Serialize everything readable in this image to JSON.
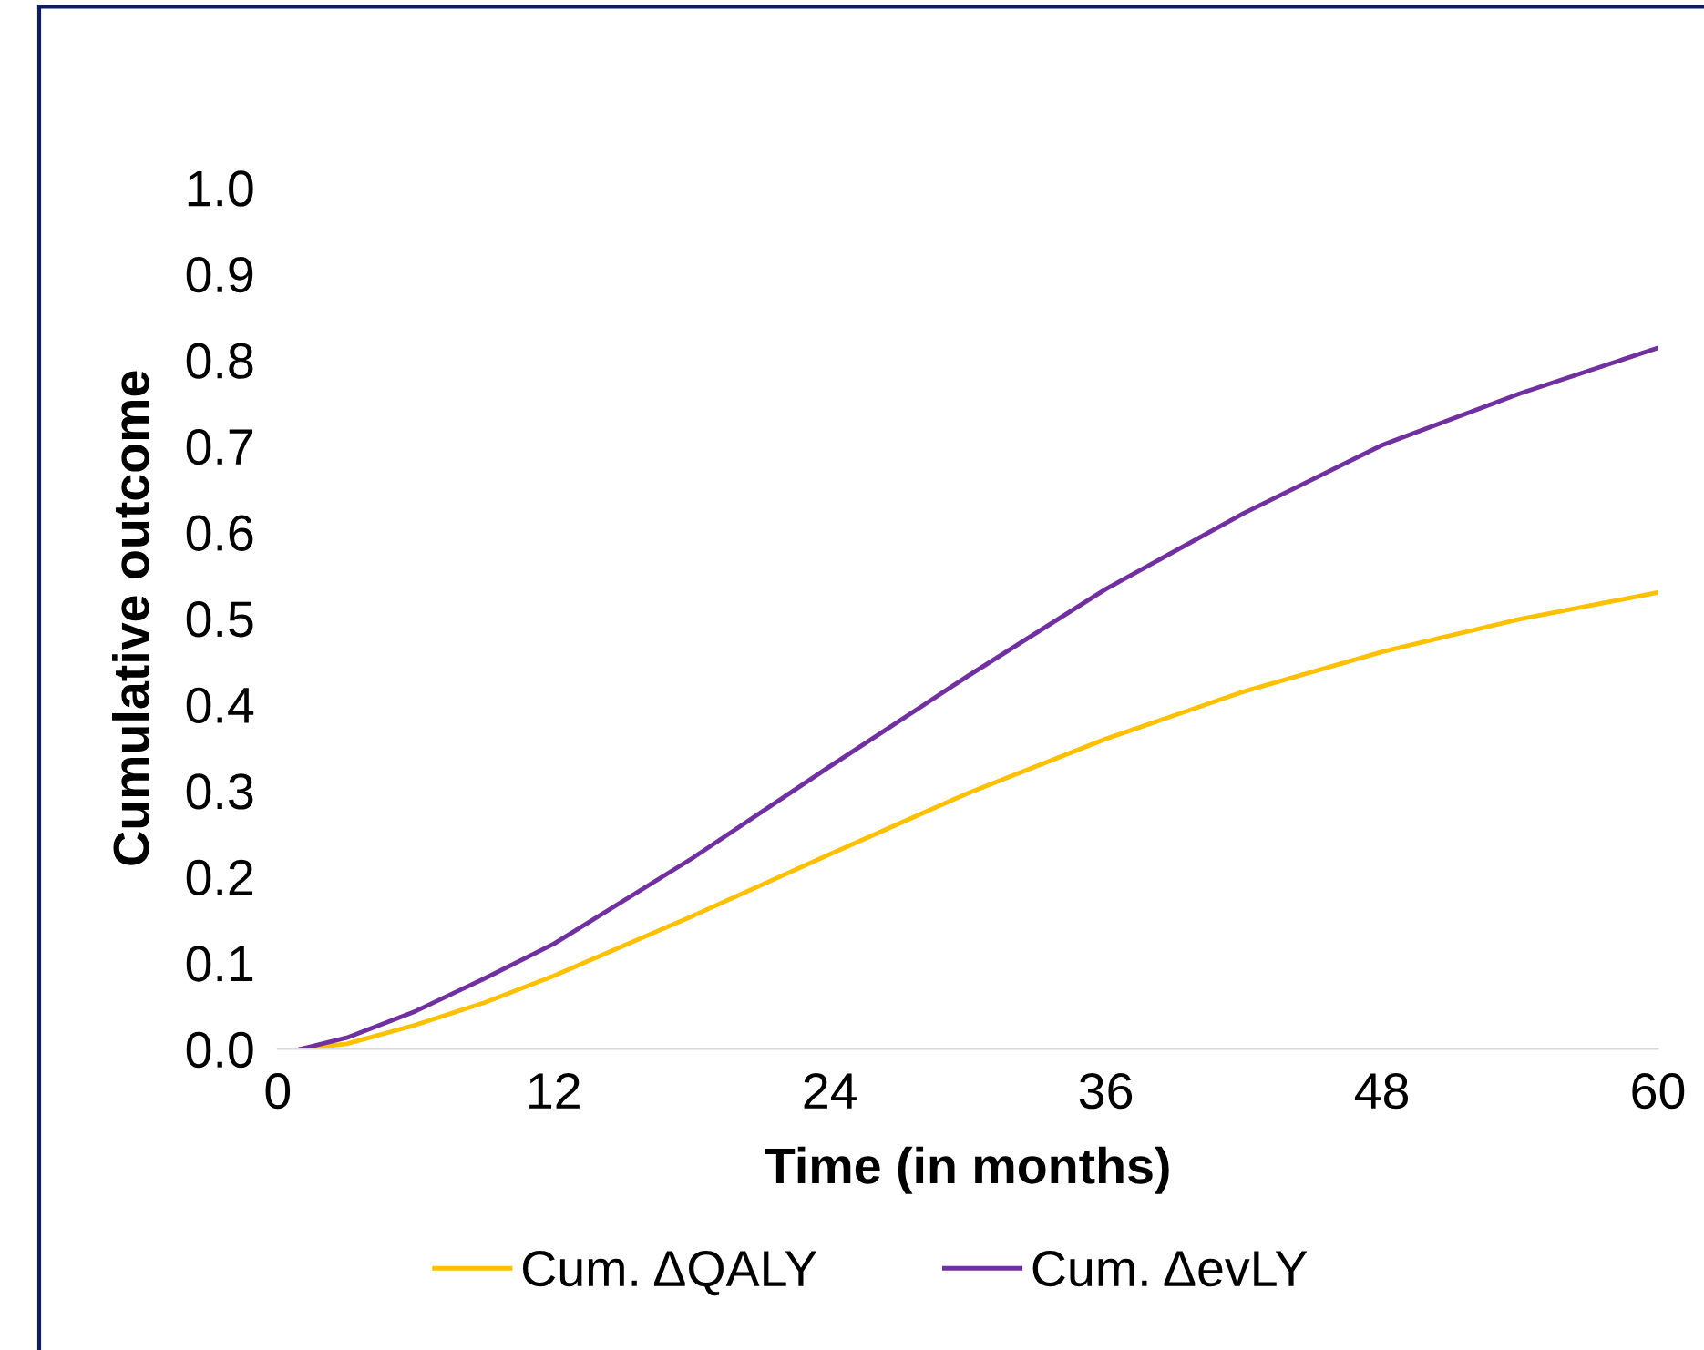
{
  "chart_data": {
    "type": "line",
    "xlabel": "Time (in months)",
    "ylabel": "Cumulative outcome",
    "xlim": [
      0,
      60
    ],
    "xticks": [
      0,
      12,
      24,
      36,
      48,
      60
    ],
    "ylim": [
      0,
      1.0
    ],
    "yticks": [
      {
        "value": 0,
        "label": "0.0"
      },
      {
        "value": 0.1,
        "label": "0.1"
      },
      {
        "value": 0.2,
        "label": "0.2"
      },
      {
        "value": 0.3,
        "label": "0.3"
      },
      {
        "value": 0.4,
        "label": "0.4"
      },
      {
        "value": 0.5,
        "label": "0.5"
      },
      {
        "value": 0.6,
        "label": "0.6"
      },
      {
        "value": 0.7,
        "label": "0.7"
      },
      {
        "value": 0.8,
        "label": "0.8"
      },
      {
        "value": 0.9,
        "label": "0.9"
      },
      {
        "value": 1.0,
        "label": "1.0"
      }
    ],
    "grid": false,
    "legend": "bottom",
    "marker": "none",
    "line_style": "solid",
    "series": [
      {
        "name": "Cum. ΔQALY",
        "color": "#ffc000",
        "x": [
          1,
          3,
          6,
          9,
          12,
          18,
          24,
          30,
          36,
          42,
          48,
          54,
          60
        ],
        "values": [
          0.0,
          0.006,
          0.028,
          0.054,
          0.085,
          0.154,
          0.226,
          0.297,
          0.36,
          0.415,
          0.461,
          0.499,
          0.53
        ]
      },
      {
        "name": "Cum. ΔevLY",
        "color": "#7030a0",
        "x": [
          1,
          3,
          6,
          9,
          12,
          18,
          24,
          30,
          36,
          42,
          48,
          54,
          60
        ],
        "values": [
          0.0,
          0.013,
          0.044,
          0.082,
          0.122,
          0.221,
          0.328,
          0.433,
          0.534,
          0.622,
          0.701,
          0.761,
          0.814
        ]
      }
    ]
  }
}
